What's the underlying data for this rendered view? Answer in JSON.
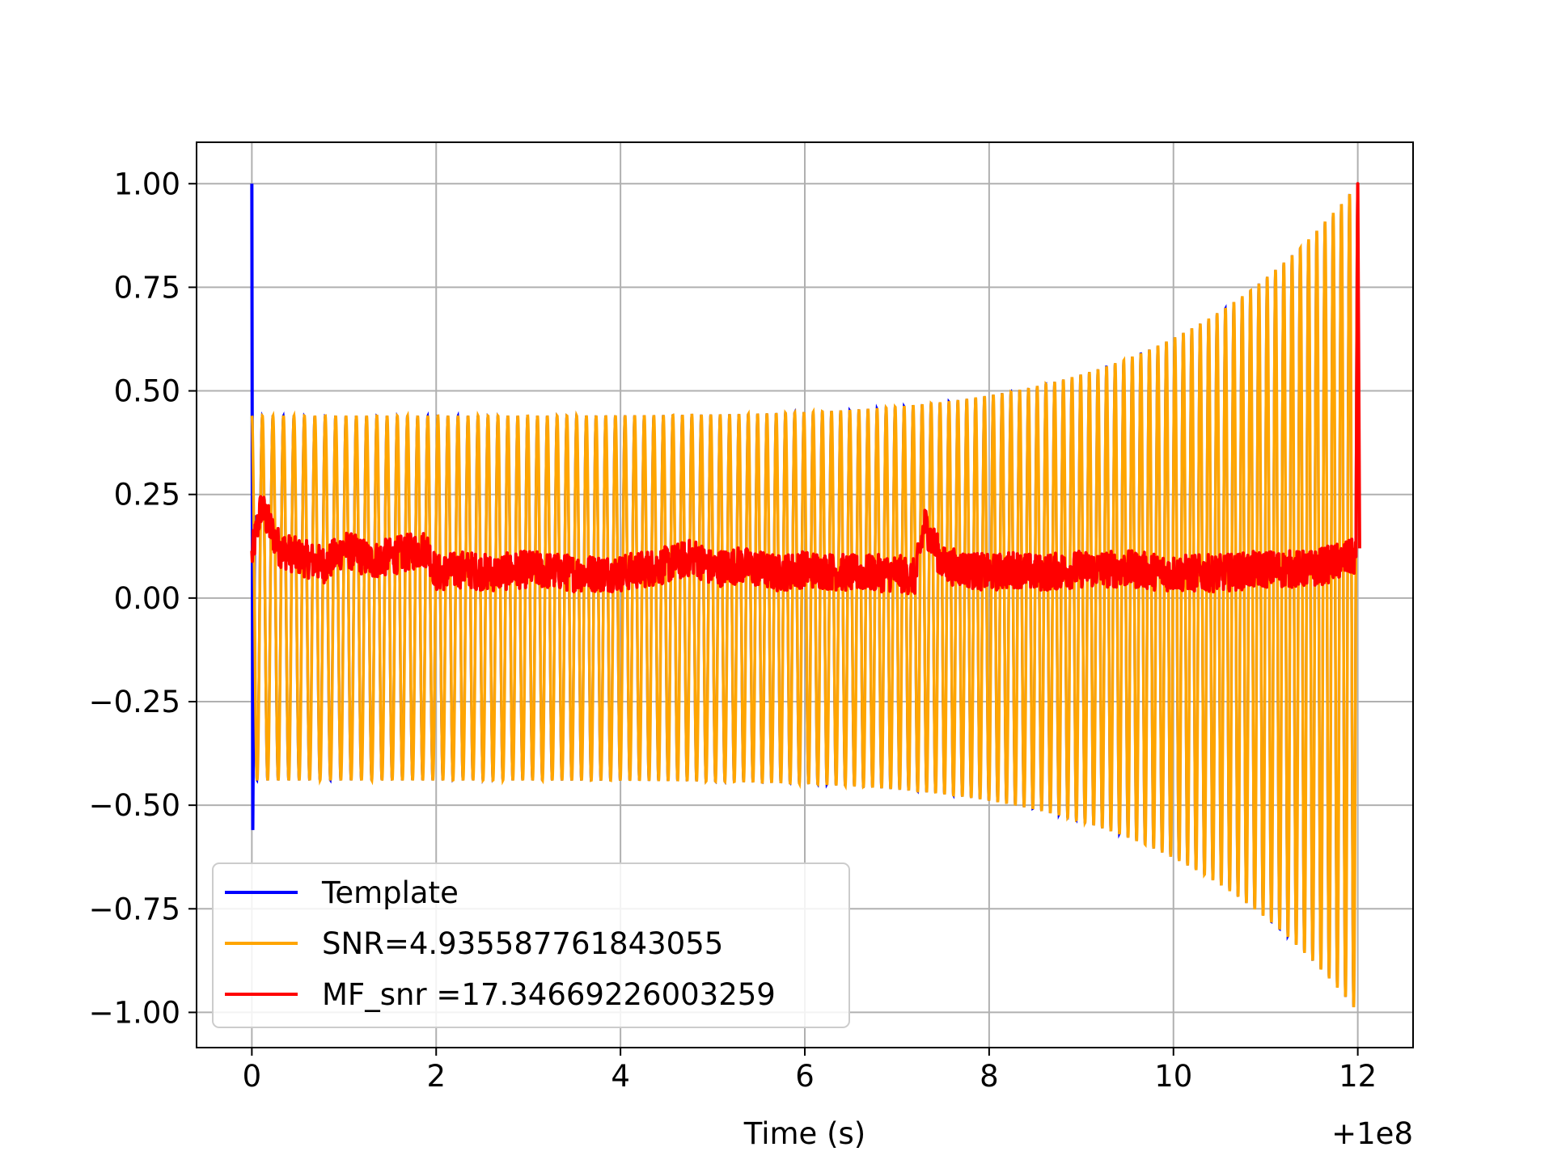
{
  "chart_data": {
    "type": "line",
    "title": "",
    "xlabel": "Time (s)",
    "ylabel": "",
    "x_offset_label": "+1e8",
    "xlim": [
      -0.6,
      12.6
    ],
    "ylim": [
      -1.085,
      1.1
    ],
    "grid": true,
    "legend_position": "lower-left",
    "x_ticks": [
      {
        "value": 0,
        "label": "0"
      },
      {
        "value": 2,
        "label": "2"
      },
      {
        "value": 4,
        "label": "4"
      },
      {
        "value": 6,
        "label": "6"
      },
      {
        "value": 8,
        "label": "8"
      },
      {
        "value": 10,
        "label": "10"
      },
      {
        "value": 12,
        "label": "12"
      }
    ],
    "y_ticks": [
      {
        "value": 1.0,
        "label": "1.00"
      },
      {
        "value": 0.75,
        "label": "0.75"
      },
      {
        "value": 0.5,
        "label": "0.50"
      },
      {
        "value": 0.25,
        "label": "0.25"
      },
      {
        "value": 0.0,
        "label": "0.00"
      },
      {
        "value": -0.25,
        "label": "−0.25"
      },
      {
        "value": -0.5,
        "label": "−0.50"
      },
      {
        "value": -0.75,
        "label": "−0.75"
      },
      {
        "value": -1.0,
        "label": "−1.00"
      }
    ],
    "series": [
      {
        "name": "Template",
        "color": "#0000ff",
        "description_values": {
          "start": 0.0,
          "end": 12.0,
          "start_amplitude": 0.44,
          "end_amplitude": 1.0,
          "initial_spike_max": 1.0,
          "initial_spike_min": -0.56,
          "cycles": 120
        }
      },
      {
        "name": "SNR=4.935587761843055",
        "color": "#ffa500",
        "description_values": {
          "start": 0.0,
          "end": 12.0,
          "start_amplitude": 0.44,
          "end_amplitude": 1.0,
          "cycles": 120
        }
      },
      {
        "name": "MF_snr =17.34669226003259",
        "color": "#ff0000",
        "x": [
          0.0,
          0.1,
          0.3,
          0.5,
          0.8,
          1.0,
          1.3,
          1.5,
          1.9,
          2.0,
          2.3,
          2.6,
          3.0,
          3.5,
          4.0,
          4.5,
          4.8,
          5.0,
          5.3,
          5.7,
          6.0,
          6.5,
          7.0,
          7.2,
          7.3,
          7.5,
          8.0,
          8.3,
          8.5,
          9.0,
          9.5,
          10.0,
          10.5,
          11.0,
          11.5,
          11.98,
          12.0,
          12.02
        ],
        "y": [
          0.1,
          0.22,
          0.12,
          0.1,
          0.08,
          0.12,
          0.09,
          0.1,
          0.12,
          0.06,
          0.07,
          0.06,
          0.07,
          0.06,
          0.06,
          0.08,
          0.1,
          0.07,
          0.08,
          0.06,
          0.07,
          0.06,
          0.06,
          0.05,
          0.18,
          0.08,
          0.06,
          0.07,
          0.06,
          0.07,
          0.07,
          0.06,
          0.06,
          0.07,
          0.07,
          0.1,
          1.0,
          0.12
        ]
      }
    ]
  }
}
